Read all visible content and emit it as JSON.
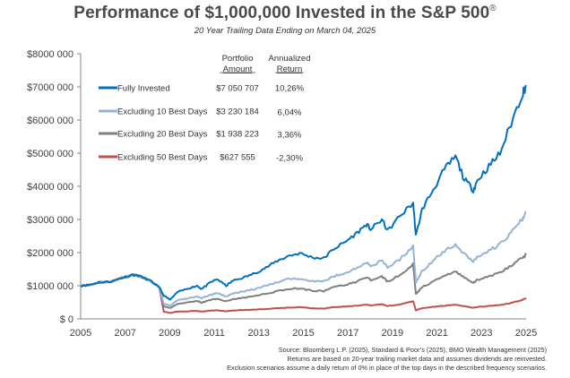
{
  "chart_data": {
    "type": "line",
    "title": "Performance of $1,000,000 Invested in the S&P 500",
    "title_mark": "®",
    "subtitle": "20 Year Trailing Data Ending on March 04, 2025",
    "xlabel": "",
    "ylabel": "",
    "xlim": [
      2005.17,
      2025.17
    ],
    "ylim": [
      0,
      8000000
    ],
    "x_ticks": [
      2005,
      2007,
      2009,
      2011,
      2013,
      2015,
      2017,
      2019,
      2021,
      2023,
      2025
    ],
    "x_tick_labels": [
      "2005",
      "2007",
      "2009",
      "2011",
      "2013",
      "2015",
      "2017",
      "2019",
      "2021",
      "2023",
      "2025"
    ],
    "y_ticks": [
      0,
      1000000,
      2000000,
      3000000,
      4000000,
      5000000,
      6000000,
      7000000,
      8000000
    ],
    "y_tick_labels": [
      "$ 0",
      "$1000 000",
      "$2000 000",
      "$3000 000",
      "$4000 000",
      "$5000 000",
      "$6000 000",
      "$7000 000",
      "$8000 000"
    ],
    "grid": false,
    "legend_position": "top-left",
    "legend_headers": {
      "amount": [
        "Portfolio",
        "Amount"
      ],
      "return": [
        "Annualized",
        "Return"
      ]
    },
    "x": [
      2005.17,
      2005.5,
      2006.0,
      2006.5,
      2007.0,
      2007.5,
      2007.8,
      2008.3,
      2008.7,
      2008.9,
      2009.2,
      2009.5,
      2010.0,
      2010.4,
      2010.6,
      2011.0,
      2011.3,
      2011.7,
      2012.0,
      2012.5,
      2013.0,
      2013.5,
      2014.0,
      2014.5,
      2015.0,
      2015.6,
      2016.1,
      2016.5,
      2017.0,
      2017.5,
      2018.0,
      2018.2,
      2018.7,
      2018.95,
      2019.5,
      2020.1,
      2020.22,
      2020.5,
      2021.0,
      2021.5,
      2022.0,
      2022.4,
      2022.8,
      2023.0,
      2023.5,
      2024.0,
      2024.5,
      2025.0,
      2025.17
    ],
    "series": [
      {
        "name": "Fully Invested",
        "amount": "$7 050 707",
        "return": "10,26%",
        "color": "#0070C0",
        "values": [
          1000000,
          1020000,
          1100000,
          1120000,
          1230000,
          1330000,
          1300000,
          1150000,
          950000,
          700000,
          580000,
          800000,
          920000,
          1000000,
          900000,
          1100000,
          1200000,
          1000000,
          1150000,
          1250000,
          1380000,
          1550000,
          1750000,
          1900000,
          1980000,
          1850000,
          1830000,
          2100000,
          2300000,
          2550000,
          2850000,
          2700000,
          3000000,
          2650000,
          3100000,
          3500000,
          2500000,
          3300000,
          3900000,
          4500000,
          4900000,
          4200000,
          3900000,
          4200000,
          4600000,
          5000000,
          5900000,
          6800000,
          7050707
        ]
      },
      {
        "name": "Excluding 10 Best Days",
        "amount": "$3 230 184",
        "return": "6,04%",
        "color": "#95B3D7",
        "values": [
          1000000,
          1020000,
          1100000,
          1120000,
          1230000,
          1330000,
          1300000,
          1150000,
          950000,
          450000,
          400000,
          560000,
          620000,
          680000,
          620000,
          720000,
          780000,
          680000,
          760000,
          830000,
          900000,
          1000000,
          1100000,
          1200000,
          1230000,
          1140000,
          1130000,
          1280000,
          1380000,
          1500000,
          1700000,
          1600000,
          1750000,
          1550000,
          1800000,
          2200000,
          1100000,
          1450000,
          1750000,
          2050000,
          2250000,
          1950000,
          1750000,
          1880000,
          2050000,
          2250000,
          2600000,
          3000000,
          3230184
        ]
      },
      {
        "name": "Excluding 20 Best Days",
        "amount": "$1 938 223",
        "return": "3,36%",
        "color": "#7F7F7F",
        "values": [
          1000000,
          1020000,
          1100000,
          1120000,
          1230000,
          1330000,
          1300000,
          1150000,
          950000,
          380000,
          330000,
          450000,
          500000,
          540000,
          490000,
          570000,
          610000,
          530000,
          590000,
          640000,
          690000,
          760000,
          840000,
          900000,
          920000,
          850000,
          840000,
          950000,
          1020000,
          1100000,
          1250000,
          1170000,
          1280000,
          1130000,
          1310000,
          1650000,
          750000,
          950000,
          1120000,
          1300000,
          1430000,
          1240000,
          1100000,
          1180000,
          1280000,
          1400000,
          1600000,
          1850000,
          1938223
        ]
      },
      {
        "name": "Excluding 50 Best Days",
        "amount": "$627 555",
        "return": "-2,30%",
        "color": "#C0504D",
        "values": [
          1000000,
          1020000,
          1100000,
          1120000,
          1230000,
          1330000,
          1300000,
          1150000,
          950000,
          220000,
          180000,
          220000,
          230000,
          240000,
          220000,
          250000,
          260000,
          230000,
          250000,
          270000,
          280000,
          300000,
          320000,
          340000,
          350000,
          320000,
          315000,
          350000,
          370000,
          390000,
          430000,
          410000,
          440000,
          390000,
          440000,
          540000,
          260000,
          320000,
          360000,
          400000,
          430000,
          380000,
          340000,
          360000,
          390000,
          420000,
          480000,
          570000,
          627555
        ]
      }
    ]
  },
  "footnotes": [
    "Source: Bloomberg L.P. (2025), Standard & Poor’s (2025), BMO Wealth Management (2025)",
    "Returns are based on 20-year trailing market data and assumes dividends are reinvested.",
    "Exclusion scenarios assume a daily return of 0% in place of the top days in the described frequency scenarios."
  ]
}
